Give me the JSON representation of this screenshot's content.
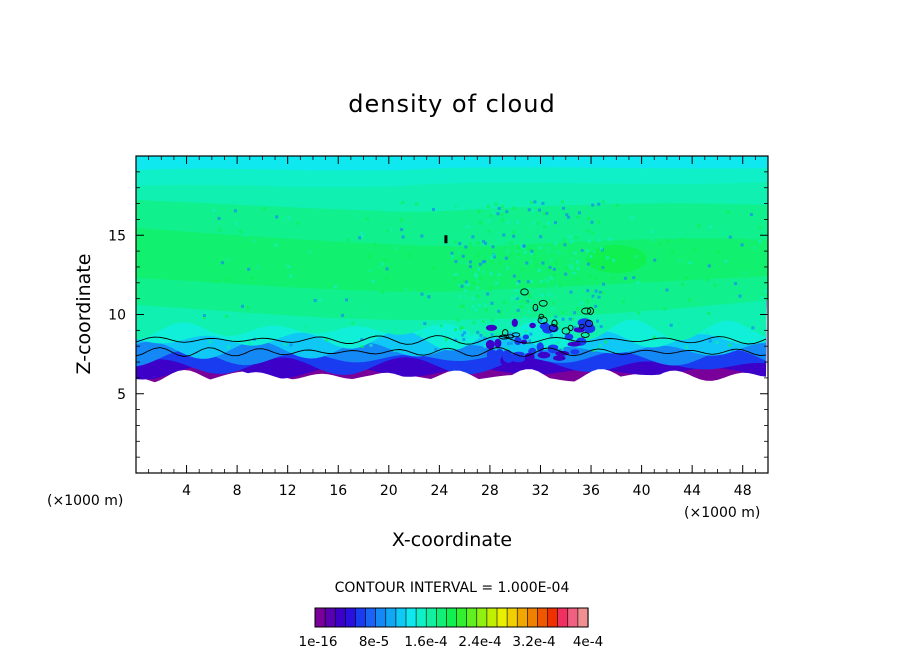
{
  "chart_data": {
    "type": "heatmap",
    "title": "density of cloud",
    "xlabel": "X-coordinate",
    "ylabel": "Z-coordinate",
    "x_unit": "(×1000 m)",
    "z_unit": "(×1000 m)",
    "xlim": [
      0,
      50
    ],
    "ylim": [
      0,
      20
    ],
    "x_ticks": [
      4,
      8,
      12,
      16,
      20,
      24,
      28,
      32,
      36,
      40,
      44,
      48
    ],
    "y_ticks": [
      5,
      10,
      15
    ],
    "contour_interval_label": "CONTOUR INTERVAL = 1.000E-04",
    "colorbar_labels": [
      "1e-16",
      "8e-5",
      "1.6e-4",
      "2.4e-4",
      "3.2e-4",
      "4e-4"
    ],
    "colorbar_colors": [
      "#7a009a",
      "#5a00b0",
      "#3c00c8",
      "#2a10e0",
      "#1a3cf0",
      "#1a64f5",
      "#1488f5",
      "#10a8f5",
      "#10c8f5",
      "#10e8f0",
      "#10f0c8",
      "#10f0a0",
      "#10f078",
      "#10f050",
      "#30f030",
      "#60f020",
      "#90f010",
      "#c0f000",
      "#e8f000",
      "#f0d000",
      "#f0a800",
      "#f08000",
      "#f05800",
      "#f03000",
      "#f03060",
      "#f06080",
      "#f09090"
    ],
    "cloud_base_km": 6.5,
    "cloud_top_km": 19.5
  }
}
